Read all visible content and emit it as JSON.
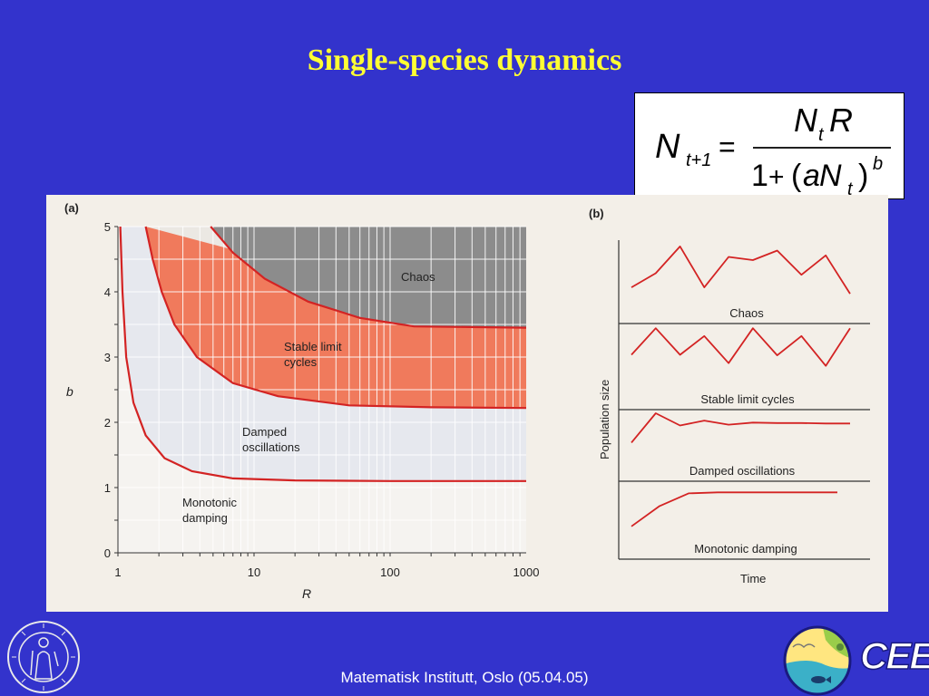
{
  "slide": {
    "title": "Single-species dynamics",
    "footer": "Matematisk Institutt, Oslo (05.04.05)"
  },
  "formula": {
    "lhs_var": "N",
    "lhs_sub": "t+1",
    "equals": "=",
    "num_var": "N",
    "num_sub": "t",
    "num_factor": "R",
    "den_one": "1",
    "den_plus": "+",
    "den_open": "(",
    "den_a": "a",
    "den_var": "N",
    "den_sub": "t",
    "den_close": ")",
    "den_exp": "b"
  },
  "logos": {
    "university_seal": "UNIVERSITAS OSLOENSIS MDCCCXI",
    "cees": "CEES"
  },
  "colors": {
    "background": "#3333cc",
    "title": "#ffff33",
    "chaos_region": "#8c8c8c",
    "stable_region": "#f07a5c",
    "boundary": "#d32323",
    "series_line": "#d32323"
  },
  "chart_data": [
    {
      "type": "area",
      "panel_label": "(a)",
      "xlabel": "R",
      "ylabel": "b",
      "x_scale": "log",
      "xlim": [
        1,
        1000
      ],
      "ylim": [
        0,
        5
      ],
      "x_ticks": [
        {
          "value": 1,
          "label": "1"
        },
        {
          "value": 10,
          "label": "10"
        },
        {
          "value": 100,
          "label": "100"
        },
        {
          "value": 1000,
          "label": "1000"
        }
      ],
      "y_ticks": [
        {
          "value": 0,
          "label": "0"
        },
        {
          "value": 1,
          "label": "1"
        },
        {
          "value": 2,
          "label": "2"
        },
        {
          "value": 3,
          "label": "3"
        },
        {
          "value": 4,
          "label": "4"
        },
        {
          "value": 5,
          "label": "5"
        }
      ],
      "boundaries": [
        {
          "points": [
            [
              1.04,
              5
            ],
            [
              1.08,
              4
            ],
            [
              1.15,
              3
            ],
            [
              1.3,
              2.3
            ],
            [
              1.6,
              1.8
            ],
            [
              2.2,
              1.45
            ],
            [
              3.5,
              1.25
            ],
            [
              7,
              1.14
            ],
            [
              20,
              1.11
            ],
            [
              100,
              1.1
            ],
            [
              1000,
              1.1
            ]
          ]
        },
        {
          "points": [
            [
              1.6,
              5
            ],
            [
              1.8,
              4.5
            ],
            [
              2.1,
              4
            ],
            [
              2.6,
              3.5
            ],
            [
              3.8,
              3.0
            ],
            [
              7,
              2.6
            ],
            [
              15,
              2.4
            ],
            [
              50,
              2.26
            ],
            [
              200,
              2.23
            ],
            [
              1000,
              2.22
            ]
          ]
        },
        {
          "points": [
            [
              4.8,
              5
            ],
            [
              7,
              4.6
            ],
            [
              12,
              4.2
            ],
            [
              25,
              3.85
            ],
            [
              60,
              3.6
            ],
            [
              150,
              3.47
            ],
            [
              1000,
              3.45
            ]
          ]
        }
      ],
      "regions": [
        {
          "label": "Chaos"
        },
        {
          "label": "Stable limit cycles"
        },
        {
          "label": "Damped oscillations"
        },
        {
          "label": "Monotonic damping"
        }
      ]
    },
    {
      "type": "line",
      "panel_label": "(b)",
      "xlabel": "Time",
      "ylabel": "Population size",
      "ylim": [
        0,
        1
      ],
      "series": [
        {
          "name": "Chaos",
          "values": [
            0.17,
            0.44,
            0.95,
            0.17,
            0.75,
            0.69,
            0.87,
            0.41,
            0.78,
            0.05
          ]
        },
        {
          "name": "Stable limit cycles",
          "values": [
            0.5,
            0.98,
            0.5,
            0.84,
            0.35,
            0.98,
            0.49,
            0.84,
            0.3,
            0.98
          ]
        },
        {
          "name": "Damped oscillations",
          "values": [
            0.28,
            1.0,
            0.7,
            0.82,
            0.72,
            0.77,
            0.76,
            0.76,
            0.75,
            0.75
          ]
        },
        {
          "name": "Monotonic damping",
          "values": [
            0.12,
            0.55,
            0.82,
            0.84,
            0.84,
            0.84,
            0.84,
            0.84
          ]
        }
      ]
    }
  ]
}
